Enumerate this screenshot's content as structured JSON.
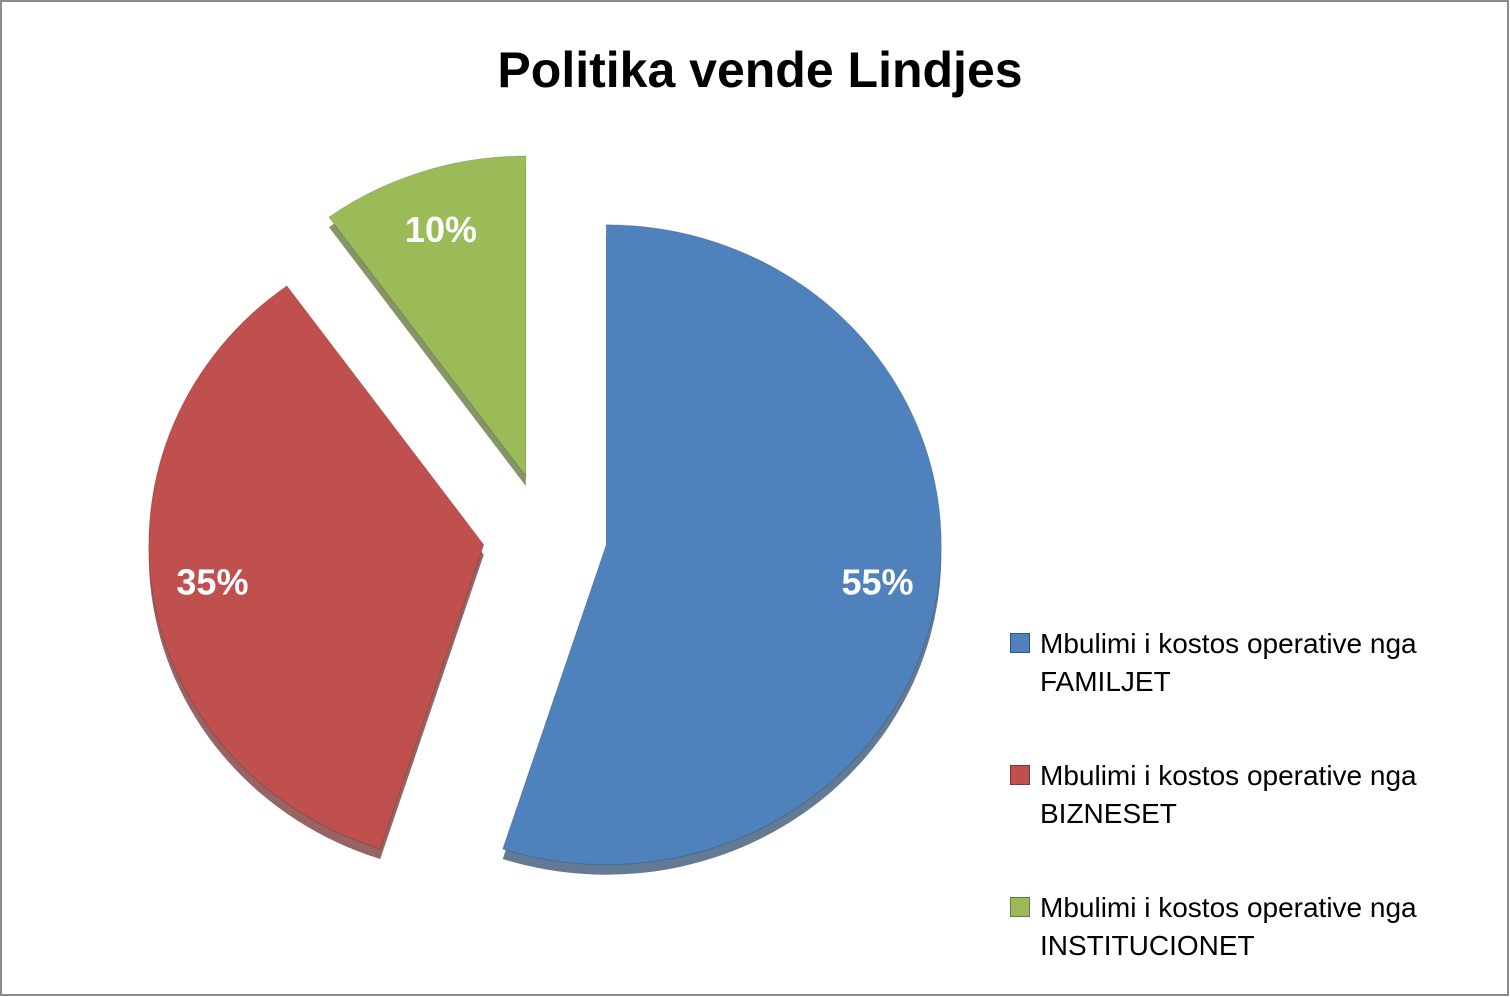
{
  "chart_data": {
    "type": "pie",
    "title": "Politika vende Lindjes",
    "categories": [
      "Mbulimi i kostos operative nga FAMILJET",
      "Mbulimi i kostos operative nga BIZNESET",
      "Mbulimi i kostos operative nga INSTITUCIONET"
    ],
    "values": [
      55,
      35,
      10
    ],
    "value_labels": [
      "55%",
      "35%",
      "10%"
    ],
    "colors": [
      "#4f81bd",
      "#c0504d",
      "#9bbb59"
    ],
    "legend": "right"
  }
}
